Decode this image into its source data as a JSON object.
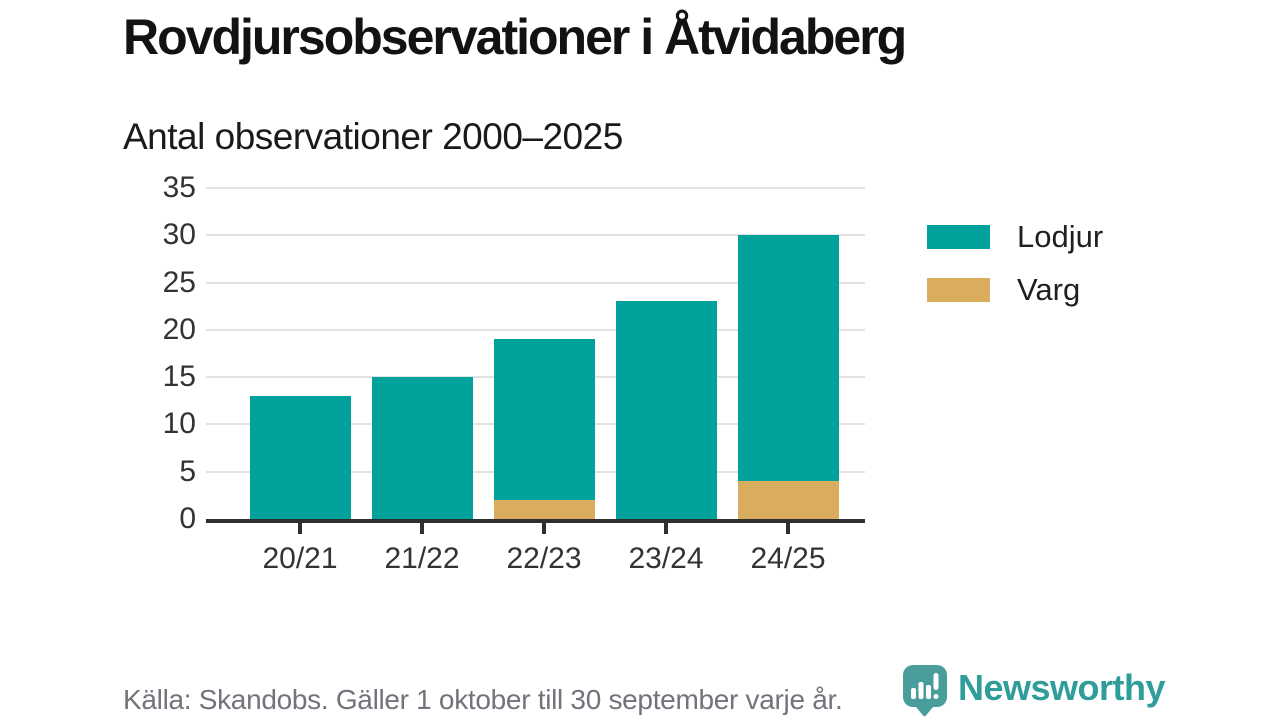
{
  "page": {
    "title": "Rovdjursobservationer i Åtvidaberg",
    "subtitle": "Antal observationer 2000–2025",
    "source": "Källa: Skandobs. Gäller 1 oktober till 30 september varje år.",
    "brand": {
      "name": "Newsworthy",
      "icon": "newsworthy-speech-bubble-bar-chart-icon",
      "wordmark_color": "#2f9d99",
      "icon_color": "#499e9c"
    }
  },
  "chart_data": {
    "type": "bar",
    "stacked": true,
    "title": "Antal observationer 2000–2025",
    "categories": [
      "20/21",
      "21/22",
      "22/23",
      "23/24",
      "24/25"
    ],
    "series": [
      {
        "name": "Lodjur",
        "color": "#00a29b",
        "values": [
          13,
          15,
          17,
          23,
          26
        ]
      },
      {
        "name": "Varg",
        "color": "#d9ac5e",
        "values": [
          0,
          0,
          2,
          0,
          4
        ]
      }
    ],
    "stack_bottom_to_top": [
      "Varg",
      "Lodjur"
    ],
    "totals": [
      13,
      15,
      19,
      23,
      30
    ],
    "xlabel": "",
    "ylabel": "",
    "ylim": [
      0,
      35
    ],
    "yticks": [
      0,
      5,
      10,
      15,
      20,
      25,
      30,
      35
    ],
    "grid": true,
    "legend_position": "right"
  },
  "colors": {
    "background": "#ffffff",
    "axis": "#2f2f2f",
    "gridline": "#e2e2e2",
    "tick_label": "#333333",
    "title_text": "#121212",
    "source_text": "#73737c"
  }
}
